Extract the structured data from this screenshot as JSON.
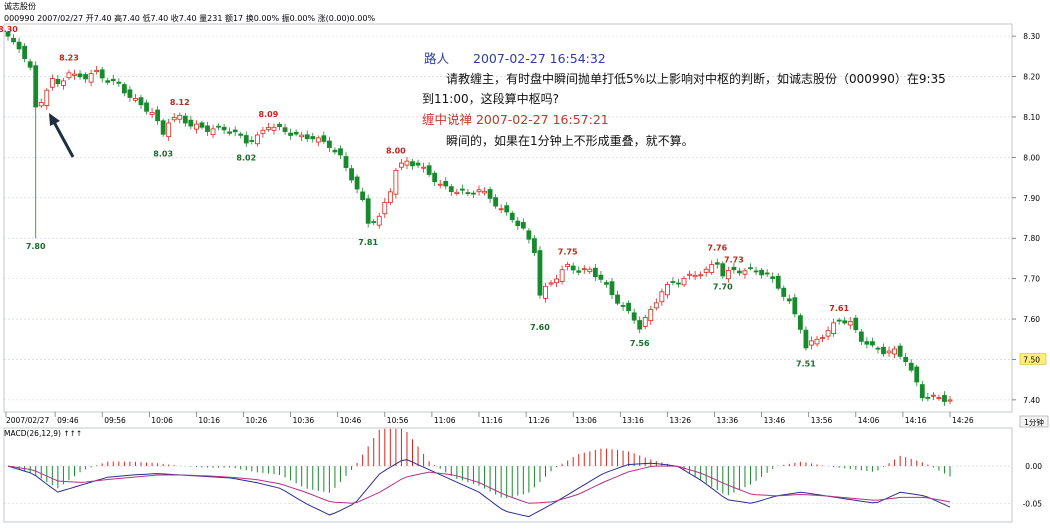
{
  "header": {
    "name": "诚志股份",
    "info": "000990 2007/02/27 开7.40 高7.40 低7.40 收7.40 量231 额17 换0.00% 振0.00% 涨(0.00)0.00%"
  },
  "period_button": "1分钟",
  "macd_label": "MACD(26,12,9) ↑↑↑",
  "comments": {
    "q_author": "路人",
    "q_time": "2007-02-27 16:54:32",
    "q_line1": "请教缠主，有时盘中瞬间抛单打低5%以上影响对中枢的判断，如诚志股份（000990）在9:35",
    "q_line2": "到11:00，这段算中枢吗?",
    "a_author_time": "缠中说禅 2007-02-27 16:57:21",
    "a_text": "瞬间的，如果在1分钟上不形成重叠，就不算。"
  },
  "colors": {
    "up": "#d9261c",
    "down": "#178a2c",
    "grid": "#c8d0dc",
    "dif": "#2b2f8f",
    "dea": "#b0338a",
    "question_author": "#2f3f9e",
    "answer": "#c0392b",
    "arrow": "#1f2f3f"
  },
  "chart_data": {
    "type": "candlestick",
    "title": "诚志股份 000990 1分钟",
    "ylim": [
      7.37,
      8.33
    ],
    "y_ticks": [
      "8.30",
      "8.20",
      "8.10",
      "8.00",
      "7.90",
      "7.80",
      "7.70",
      "7.60",
      "7.50",
      "7.40"
    ],
    "highlight_price": "7.50",
    "x_ticks": [
      "2007/02/27",
      "09:46",
      "09:56",
      "10:06",
      "10:16",
      "10:26",
      "10:36",
      "10:46",
      "10:56",
      "11:06",
      "11:16",
      "11:26",
      "13:06",
      "13:16",
      "13:26",
      "13:36",
      "13:46",
      "13:56",
      "14:06",
      "14:16",
      "14:26"
    ],
    "annotations": [
      {
        "label": "8.30",
        "bar": 0,
        "value": 8.3,
        "kind": "high"
      },
      {
        "label": "7.80",
        "bar": 5,
        "value": 7.8,
        "kind": "low"
      },
      {
        "label": "8.23",
        "bar": 11,
        "value": 8.23,
        "kind": "high"
      },
      {
        "label": "8.03",
        "bar": 28,
        "value": 8.03,
        "kind": "low"
      },
      {
        "label": "8.12",
        "bar": 31,
        "value": 8.12,
        "kind": "high"
      },
      {
        "label": "8.02",
        "bar": 43,
        "value": 8.02,
        "kind": "low"
      },
      {
        "label": "8.09",
        "bar": 47,
        "value": 8.09,
        "kind": "high"
      },
      {
        "label": "7.81",
        "bar": 65,
        "value": 7.81,
        "kind": "low"
      },
      {
        "label": "8.00",
        "bar": 70,
        "value": 8.0,
        "kind": "high"
      },
      {
        "label": "7.60",
        "bar": 96,
        "value": 7.6,
        "kind": "low"
      },
      {
        "label": "7.75",
        "bar": 101,
        "value": 7.75,
        "kind": "high"
      },
      {
        "label": "7.56",
        "bar": 114,
        "value": 7.56,
        "kind": "low"
      },
      {
        "label": "7.76",
        "bar": 128,
        "value": 7.76,
        "kind": "high"
      },
      {
        "label": "7.73",
        "bar": 131,
        "value": 7.73,
        "kind": "high"
      },
      {
        "label": "7.70",
        "bar": 129,
        "value": 7.7,
        "kind": "low"
      },
      {
        "label": "7.51",
        "bar": 144,
        "value": 7.51,
        "kind": "low"
      },
      {
        "label": "7.61",
        "bar": 150,
        "value": 7.61,
        "kind": "high"
      }
    ],
    "keypoints": [
      [
        0,
        8.3
      ],
      [
        1,
        8.28
      ],
      [
        2,
        8.27
      ],
      [
        3,
        8.25
      ],
      [
        4,
        8.22
      ],
      [
        5,
        8.12
      ],
      [
        6,
        8.14
      ],
      [
        7,
        8.17
      ],
      [
        8,
        8.19
      ],
      [
        9,
        8.18
      ],
      [
        11,
        8.21
      ],
      [
        12,
        8.2
      ],
      [
        14,
        8.2
      ],
      [
        16,
        8.21
      ],
      [
        18,
        8.19
      ],
      [
        20,
        8.18
      ],
      [
        22,
        8.15
      ],
      [
        24,
        8.13
      ],
      [
        26,
        8.11
      ],
      [
        28,
        8.06
      ],
      [
        29,
        8.09
      ],
      [
        31,
        8.1
      ],
      [
        33,
        8.08
      ],
      [
        36,
        8.07
      ],
      [
        39,
        8.07
      ],
      [
        41,
        8.06
      ],
      [
        43,
        8.04
      ],
      [
        45,
        8.05
      ],
      [
        47,
        8.08
      ],
      [
        49,
        8.07
      ],
      [
        51,
        8.06
      ],
      [
        53,
        8.05
      ],
      [
        55,
        8.05
      ],
      [
        58,
        8.03
      ],
      [
        60,
        8.0
      ],
      [
        62,
        7.95
      ],
      [
        64,
        7.89
      ],
      [
        65,
        7.84
      ],
      [
        67,
        7.85
      ],
      [
        69,
        7.92
      ],
      [
        70,
        7.97
      ],
      [
        72,
        7.99
      ],
      [
        74,
        7.98
      ],
      [
        76,
        7.96
      ],
      [
        78,
        7.93
      ],
      [
        80,
        7.92
      ],
      [
        83,
        7.91
      ],
      [
        85,
        7.92
      ],
      [
        87,
        7.9
      ],
      [
        89,
        7.87
      ],
      [
        91,
        7.85
      ],
      [
        93,
        7.82
      ],
      [
        95,
        7.77
      ],
      [
        96,
        7.66
      ],
      [
        98,
        7.69
      ],
      [
        100,
        7.72
      ],
      [
        101,
        7.73
      ],
      [
        103,
        7.72
      ],
      [
        105,
        7.72
      ],
      [
        107,
        7.7
      ],
      [
        109,
        7.66
      ],
      [
        111,
        7.63
      ],
      [
        113,
        7.6
      ],
      [
        114,
        7.58
      ],
      [
        116,
        7.62
      ],
      [
        118,
        7.67
      ],
      [
        120,
        7.69
      ],
      [
        122,
        7.7
      ],
      [
        124,
        7.71
      ],
      [
        126,
        7.72
      ],
      [
        128,
        7.74
      ],
      [
        129,
        7.71
      ],
      [
        131,
        7.72
      ],
      [
        133,
        7.72
      ],
      [
        135,
        7.72
      ],
      [
        137,
        7.71
      ],
      [
        139,
        7.68
      ],
      [
        141,
        7.64
      ],
      [
        143,
        7.58
      ],
      [
        144,
        7.53
      ],
      [
        146,
        7.55
      ],
      [
        148,
        7.57
      ],
      [
        150,
        7.6
      ],
      [
        152,
        7.59
      ],
      [
        154,
        7.55
      ],
      [
        156,
        7.53
      ],
      [
        158,
        7.52
      ],
      [
        160,
        7.52
      ],
      [
        162,
        7.5
      ],
      [
        164,
        7.44
      ],
      [
        165,
        7.41
      ],
      [
        170,
        7.4
      ]
    ],
    "bar_count": 171,
    "macd": {
      "ylim": [
        -0.075,
        0.035
      ],
      "y_ticks": [
        "0.00",
        "-0.05"
      ],
      "dif": [
        0.0,
        -0.01,
        -0.035,
        -0.025,
        -0.015,
        -0.012,
        -0.01,
        -0.012,
        -0.014,
        -0.016,
        -0.022,
        -0.03,
        -0.05,
        -0.066,
        -0.05,
        -0.01,
        0.01,
        -0.005,
        -0.02,
        -0.035,
        -0.06,
        -0.068,
        -0.05,
        -0.03,
        -0.01,
        0.002,
        0.004,
        0.0,
        -0.02,
        -0.045,
        -0.05,
        -0.04,
        -0.035,
        -0.04,
        -0.045,
        -0.05,
        -0.035,
        -0.04,
        -0.055
      ],
      "dea": [
        0.0,
        -0.005,
        -0.02,
        -0.022,
        -0.018,
        -0.015,
        -0.012,
        -0.012,
        -0.013,
        -0.015,
        -0.018,
        -0.024,
        -0.035,
        -0.048,
        -0.05,
        -0.035,
        -0.015,
        -0.008,
        -0.012,
        -0.022,
        -0.038,
        -0.05,
        -0.048,
        -0.038,
        -0.022,
        -0.008,
        0.0,
        0.0,
        -0.01,
        -0.025,
        -0.038,
        -0.04,
        -0.038,
        -0.04,
        -0.043,
        -0.046,
        -0.042,
        -0.042,
        -0.048
      ]
    }
  }
}
